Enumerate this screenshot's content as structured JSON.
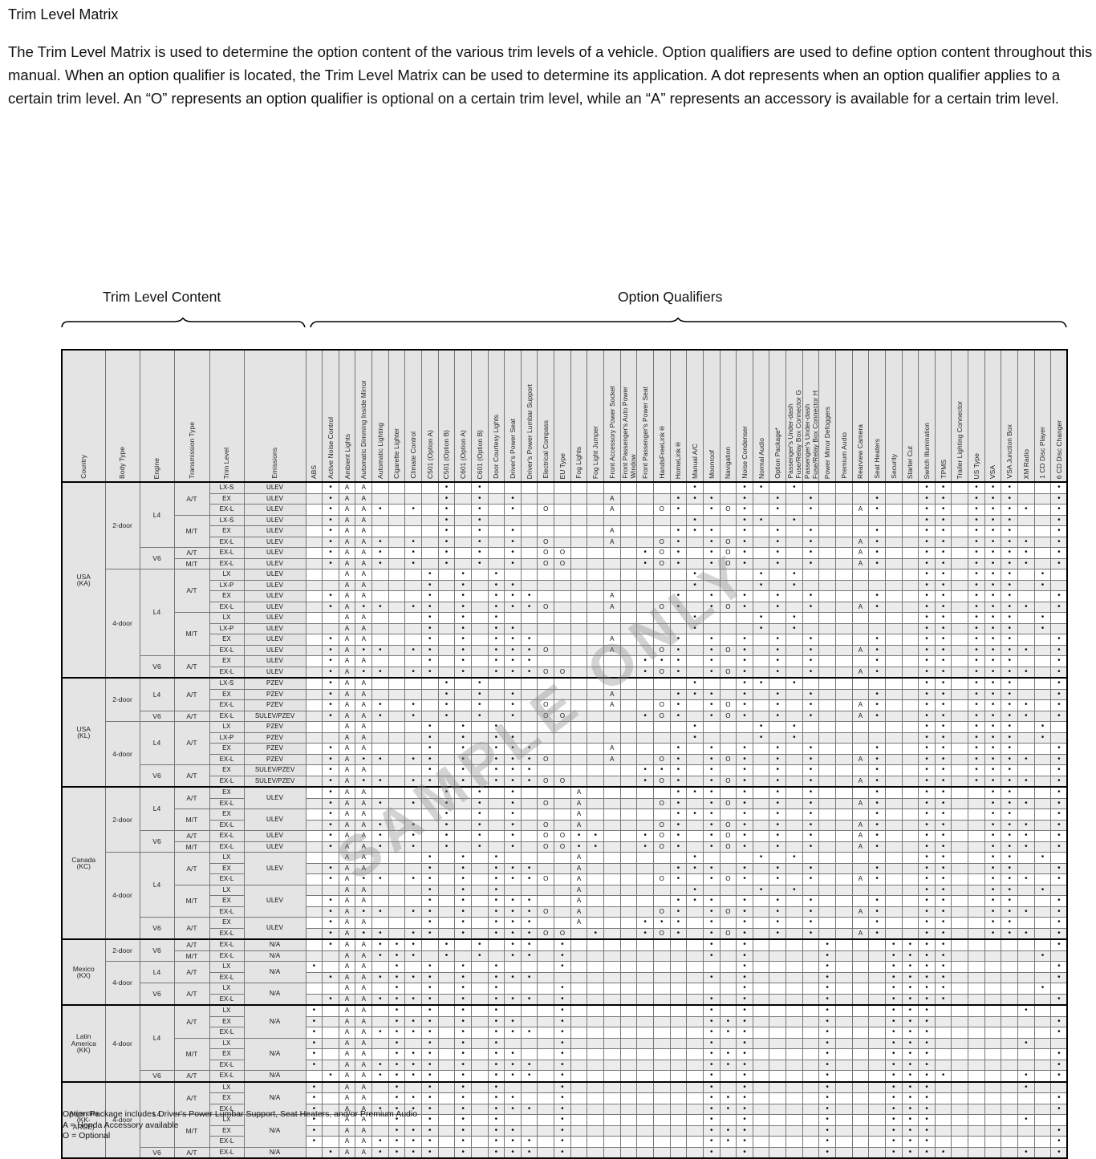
{
  "page": {
    "title": "Trim Level Matrix",
    "intro": "The Trim Level Matrix is used to determine the option content of the various trim levels of a vehicle.  Option qualifiers are used to define option content throughout this manual.  When an option qualifier is located, the Trim Level Matrix can be used to determine its application.  A dot represents when an option qualifier applies to a certain trim level.  An “O” represents an option qualifier is optional on a certain trim level, while an “A” represents an accessory is available for a certain trim level.",
    "watermark": "SAMPLE ONLY"
  },
  "brackets": {
    "left_label": "Trim Level Content",
    "right_label": "Option Qualifiers"
  },
  "legend_symbols": {
    "applies": "•",
    "accessory": "A",
    "optional": "O"
  },
  "table": {
    "id_headers": [
      "Country",
      "Body Type",
      "Engine",
      "Transmission Type",
      "Trim Level",
      "Emissions"
    ],
    "option_headers": [
      "ABS",
      "Active Noise Control",
      "Ambient Lights",
      "Automatic Dimming Inside Mirror",
      "Automatic Lighting",
      "Cigarette Lighter",
      "Climate Control",
      "C501 (Option A)",
      "C501 (Option B)",
      "C601 (Option A)",
      "C601 (Option B)",
      "Door Courtesy Lights",
      "Driver's Power Seat",
      "Driver's Power Lumbar Support",
      "Electrical Compass",
      "EU Type",
      "Fog Lights",
      "Fog Light Jumper",
      "Front Accessory Power Socket",
      "Front Passenger's Auto Power\nWindow",
      "Front Passenger's Power Seat",
      "HandsFreeLink®",
      "HomeLink®",
      "Manual A/C",
      "Moonroof",
      "Navigation",
      "Noise Condenser",
      "Normal Audio",
      "Option Package*",
      "Passenger's Under-dash\nFuse/Relay Box Connector G",
      "Passenger's Under-dash\nFuse/Relay Box Connector H",
      "Power Mirror Defoggers",
      "Premium Audio",
      "Rearview Camera",
      "Seat Heaters",
      "Security",
      "Starter Cut",
      "Switch Illumination",
      "TPMS",
      "Trailer Lighting Connector",
      "US Type",
      "VSA",
      "VSA Junction Box",
      "XM Radio",
      "1 CD Disc Player",
      "6 CD Disc Changer"
    ]
  },
  "sections": [
    {
      "country": "USA\n(KA)",
      "rows": [
        {
          "b": "2-door",
          "bs": 8,
          "e": "L4",
          "es": 6,
          "t": "A/T",
          "ts": 3,
          "trim": "LX-S",
          "m": "ULEV",
          "ms": 1,
          "c": "2:.,3:A,4:A,9:.,11:.,24:.,27:.,28:.,30:.,38:.,39:.,41:.,42:.,43:.,46:."
        },
        {
          "trim": "EX",
          "m": "ULEV",
          "ms": 1,
          "c": "2:.,3:A,4:A,9:.,11:.,13:.,19:A,23:.,24:.,25:.,27:.,29:.,31:.,35:.,38:.,39:.,41:.,42:.,43:.,46:."
        },
        {
          "trim": "EX-L",
          "m": "ULEV",
          "ms": 1,
          "c": "2:.,3:A,4:A,5:.,7:.,9:.,11:.,13:.,15:O,19:A,22:O,23:.,25:.,26:O,27:.,29:.,31:.,34:A,35:.,38:.,39:.,41:.,42:.,43:.,44:.,46:."
        },
        {
          "t": "M/T",
          "ts": 3,
          "trim": "LX-S",
          "m": "ULEV",
          "ms": 1,
          "c": "2:.,3:A,4:A,9:.,11:.,24:.,27:.,28:.,30:.,38:.,39:.,41:.,42:.,43:.,46:."
        },
        {
          "trim": "EX",
          "m": "ULEV",
          "ms": 1,
          "c": "2:.,3:A,4:A,9:.,11:.,13:.,19:A,23:.,24:.,25:.,27:.,29:.,31:.,35:.,38:.,39:.,41:.,42:.,43:.,46:."
        },
        {
          "trim": "EX-L",
          "m": "ULEV",
          "ms": 1,
          "c": "2:.,3:A,4:A,5:.,7:.,9:.,11:.,13:.,15:O,19:A,22:O,23:.,25:.,26:O,27:.,29:.,31:.,34:A,35:.,38:.,39:.,41:.,42:.,43:.,44:.,46:."
        },
        {
          "e": "V6",
          "es": 2,
          "t": "A/T",
          "ts": 1,
          "trim": "EX-L",
          "m": "ULEV",
          "ms": 1,
          "c": "2:.,3:A,4:A,5:.,7:.,9:.,11:.,13:.,15:O,16:O,21:.,22:O,23:.,25:.,26:O,27:.,29:.,31:.,34:A,35:.,38:.,39:.,41:.,42:.,43:.,44:.,46:."
        },
        {
          "t": "M/T",
          "ts": 1,
          "trim": "EX-L",
          "m": "ULEV",
          "ms": 1,
          "c": "2:.,3:A,4:A,5:.,7:.,9:.,11:.,13:.,15:O,16:O,21:.,22:O,23:.,25:.,26:O,27:.,29:.,31:.,34:A,35:.,38:.,39:.,41:.,42:.,43:.,44:.,46:."
        },
        {
          "b": "4-door",
          "bs": 10,
          "e": "L4",
          "es": 8,
          "t": "A/T",
          "ts": 4,
          "trim": "LX",
          "m": "ULEV",
          "ms": 1,
          "c": "3:A,4:A,8:.,10:.,12:.,24:.,28:.,30:.,38:.,39:.,41:.,42:.,43:.,45:."
        },
        {
          "trim": "LX-P",
          "m": "ULEV",
          "ms": 1,
          "c": "3:A,4:A,8:.,10:.,12:.,13:.,24:.,28:.,30:.,38:.,39:.,41:.,42:.,43:.,45:."
        },
        {
          "trim": "EX",
          "m": "ULEV",
          "ms": 1,
          "c": "2:.,3:A,4:A,8:.,10:.,12:.,13:.,14:.,19:A,23:.,25:.,27:.,29:.,31:.,35:.,38:.,39:.,41:.,42:.,43:.,46:."
        },
        {
          "trim": "EX-L",
          "m": "ULEV",
          "ms": 1,
          "c": "2:.,3:A,4:.,5:.,7:.,8:.,10:.,12:.,13:.,14:.,15:O,19:A,22:O,23:.,25:.,26:O,27:.,29:.,31:.,34:A,35:.,38:.,39:.,41:.,42:.,43:.,44:.,46:."
        },
        {
          "t": "M/T",
          "ts": 4,
          "trim": "LX",
          "m": "ULEV",
          "ms": 1,
          "c": "3:A,4:A,8:.,10:.,12:.,24:.,28:.,30:.,38:.,39:.,41:.,42:.,43:.,45:."
        },
        {
          "trim": "LX-P",
          "m": "ULEV",
          "ms": 1,
          "c": "3:A,4:A,8:.,10:.,12:.,13:.,24:.,28:.,30:.,38:.,39:.,41:.,42:.,43:.,45:."
        },
        {
          "trim": "EX",
          "m": "ULEV",
          "ms": 1,
          "c": "2:.,3:A,4:A,8:.,10:.,12:.,13:.,14:.,19:A,23:.,25:.,27:.,29:.,31:.,35:.,38:.,39:.,41:.,42:.,43:.,46:."
        },
        {
          "trim": "EX-L",
          "m": "ULEV",
          "ms": 1,
          "c": "2:.,3:A,4:.,5:.,7:.,8:.,10:.,12:.,13:.,14:.,15:O,19:A,22:O,23:.,25:.,26:O,27:.,29:.,31:.,34:A,35:.,38:.,39:.,41:.,42:.,43:.,44:.,46:."
        },
        {
          "e": "V6",
          "es": 2,
          "t": "A/T",
          "ts": 2,
          "trim": "EX",
          "m": "ULEV",
          "ms": 1,
          "c": "2:.,3:A,4:A,8:.,10:.,12:.,13:.,14:.,21:.,22:.,23:.,25:.,27:.,29:.,31:.,35:.,38:.,39:.,41:.,42:.,43:.,46:."
        },
        {
          "trim": "EX-L",
          "m": "ULEV",
          "ms": 1,
          "c": "2:.,3:A,4:.,5:.,7:.,8:.,10:.,12:.,13:.,14:.,15:O,16:O,21:.,22:O,23:.,25:.,26:O,27:.,29:.,31:.,34:A,35:.,38:.,39:.,41:.,42:.,43:.,44:.,46:."
        }
      ]
    },
    {
      "country": "USA\n(KL)",
      "rows": [
        {
          "b": "2-door",
          "bs": 4,
          "e": "L4",
          "es": 3,
          "t": "A/T",
          "ts": 3,
          "trim": "LX-S",
          "m": "PZEV",
          "ms": 1,
          "c": "2:.,3:A,4:A,9:.,11:.,24:.,27:.,28:.,30:.,38:.,39:.,41:.,42:.,43:.,46:."
        },
        {
          "trim": "EX",
          "m": "PZEV",
          "ms": 1,
          "c": "2:.,3:A,4:A,9:.,11:.,13:.,19:A,23:.,24:.,25:.,27:.,29:.,31:.,35:.,38:.,39:.,41:.,42:.,43:.,46:."
        },
        {
          "trim": "EX-L",
          "m": "PZEV",
          "ms": 1,
          "c": "2:.,3:A,4:A,5:.,7:.,9:.,11:.,13:.,15:O,19:A,22:O,23:.,25:.,26:O,27:.,29:.,31:.,34:A,35:.,38:.,39:.,41:.,42:.,43:.,44:.,46:."
        },
        {
          "e": "V6",
          "es": 1,
          "t": "A/T",
          "ts": 1,
          "trim": "EX-L",
          "m": "SULEV/PZEV",
          "ms": 1,
          "c": "2:.,3:A,4:A,5:.,7:.,9:.,11:.,13:.,15:O,16:O,21:.,22:O,23:.,25:.,26:O,27:.,29:.,31:.,34:A,35:.,38:.,39:.,41:.,42:.,43:.,44:.,46:."
        },
        {
          "b": "4-door",
          "bs": 6,
          "e": "L4",
          "es": 4,
          "t": "A/T",
          "ts": 4,
          "trim": "LX",
          "m": "PZEV",
          "ms": 1,
          "c": "3:A,4:A,8:.,10:.,12:.,24:.,28:.,30:.,38:.,39:.,41:.,42:.,43:.,45:."
        },
        {
          "trim": "LX-P",
          "m": "PZEV",
          "ms": 1,
          "c": "3:A,4:A,8:.,10:.,12:.,13:.,24:.,28:.,30:.,38:.,39:.,41:.,42:.,43:.,45:."
        },
        {
          "trim": "EX",
          "m": "PZEV",
          "ms": 1,
          "c": "2:.,3:A,4:A,8:.,10:.,12:.,13:.,14:.,19:A,23:.,25:.,27:.,29:.,31:.,35:.,38:.,39:.,41:.,42:.,43:.,46:."
        },
        {
          "trim": "EX-L",
          "m": "PZEV",
          "ms": 1,
          "c": "2:.,3:A,4:.,5:.,7:.,8:.,10:.,12:.,13:.,14:.,15:O,19:A,22:O,23:.,25:.,26:O,27:.,29:.,31:.,34:A,35:.,38:.,39:.,41:.,42:.,43:.,44:.,46:."
        },
        {
          "e": "V6",
          "es": 2,
          "t": "A/T",
          "ts": 2,
          "trim": "EX",
          "m": "SULEV/PZEV",
          "ms": 1,
          "c": "2:.,3:A,4:A,8:.,10:.,12:.,13:.,14:.,21:.,22:.,23:.,25:.,27:.,29:.,31:.,35:.,38:.,39:.,41:.,42:.,43:.,46:."
        },
        {
          "trim": "EX-L",
          "m": "SULEV/PZEV",
          "ms": 1,
          "c": "2:.,3:A,4:.,5:.,7:.,8:.,10:.,12:.,13:.,14:.,15:O,16:O,21:.,22:O,23:.,25:.,26:O,27:.,29:.,31:.,34:A,35:.,38:.,39:.,41:.,42:.,43:.,44:.,46:."
        }
      ]
    },
    {
      "country": "Canada\n(KC)",
      "rows": [
        {
          "b": "2-door",
          "bs": 6,
          "e": "L4",
          "es": 4,
          "t": "A/T",
          "ts": 2,
          "trim": "EX",
          "m": "ULEV",
          "ms": 2,
          "c": "2:.,3:A,4:A,9:.,11:.,13:.,17:A,23:.,24:.,25:.,27:.,29:.,31:.,35:.,38:.,39:.,42:.,43:.,46:."
        },
        {
          "trim": "EX-L",
          "c": "2:.,3:A,4:A,5:.,7:.,9:.,11:.,13:.,15:O,17:A,22:O,23:.,25:.,26:O,27:.,29:.,31:.,34:A,35:.,38:.,39:.,42:.,43:.,44:.,46:."
        },
        {
          "t": "M/T",
          "ts": 2,
          "trim": "EX",
          "m": "ULEV",
          "ms": 2,
          "c": "2:.,3:A,4:A,9:.,11:.,13:.,17:A,23:.,24:.,25:.,27:.,29:.,31:.,35:.,38:.,39:.,42:.,43:.,46:."
        },
        {
          "trim": "EX-L",
          "c": "2:.,3:A,4:A,5:.,7:.,9:.,11:.,13:.,15:O,17:A,22:O,23:.,25:.,26:O,27:.,29:.,31:.,34:A,35:.,38:.,39:.,42:.,43:.,44:.,46:."
        },
        {
          "e": "V6",
          "es": 2,
          "t": "A/T",
          "ts": 1,
          "trim": "EX-L",
          "m": "ULEV",
          "ms": 1,
          "c": "2:.,3:A,4:A,5:.,7:.,9:.,11:.,13:.,15:O,16:O,17:.,18:.,21:.,22:O,23:.,25:.,26:O,27:.,29:.,31:.,34:A,35:.,38:.,39:.,42:.,43:.,44:.,46:."
        },
        {
          "t": "M/T",
          "ts": 1,
          "trim": "EX-L",
          "m": "ULEV",
          "ms": 1,
          "c": "2:.,3:A,4:A,5:.,7:.,9:.,11:.,13:.,15:O,16:O,17:.,18:.,21:.,22:O,23:.,25:.,26:O,27:.,29:.,31:.,34:A,35:.,38:.,39:.,42:.,43:.,44:.,46:."
        },
        {
          "b": "4-door",
          "bs": 8,
          "e": "L4",
          "es": 6,
          "t": "A/T",
          "ts": 3,
          "trim": "LX",
          "m": "ULEV",
          "ms": 3,
          "c": "3:A,4:A,8:.,10:.,12:.,17:A,24:.,28:.,30:.,38:.,39:.,42:.,43:.,45:."
        },
        {
          "trim": "EX",
          "c": "2:.,3:A,4:A,8:.,10:.,12:.,13:.,14:.,17:A,23:.,24:.,25:.,27:.,29:.,31:.,35:.,38:.,39:.,42:.,43:.,46:."
        },
        {
          "trim": "EX-L",
          "c": "2:.,3:A,4:.,5:.,7:.,8:.,10:.,12:.,13:.,14:.,15:O,17:A,22:O,23:.,25:.,26:O,27:.,29:.,31:.,34:A,35:.,38:.,39:.,42:.,43:.,44:.,46:."
        },
        {
          "t": "M/T",
          "ts": 3,
          "trim": "LX",
          "m": "ULEV",
          "ms": 3,
          "c": "3:A,4:A,8:.,10:.,12:.,17:A,24:.,28:.,30:.,38:.,39:.,42:.,43:.,45:."
        },
        {
          "trim": "EX",
          "c": "2:.,3:A,4:A,8:.,10:.,12:.,13:.,14:.,17:A,23:.,24:.,25:.,27:.,29:.,31:.,35:.,38:.,39:.,42:.,43:.,46:."
        },
        {
          "trim": "EX-L",
          "c": "2:.,3:A,4:.,5:.,7:.,8:.,10:.,12:.,13:.,14:.,15:O,17:A,22:O,23:.,25:.,26:O,27:.,29:.,31:.,34:A,35:.,38:.,39:.,42:.,43:.,44:.,46:."
        },
        {
          "e": "V6",
          "es": 2,
          "t": "A/T",
          "ts": 2,
          "trim": "EX",
          "m": "ULEV",
          "ms": 2,
          "c": "2:.,3:A,4:A,8:.,10:.,12:.,13:.,14:.,17:A,21:.,22:.,23:.,25:.,27:.,29:.,31:.,35:.,38:.,39:.,42:.,43:.,46:."
        },
        {
          "trim": "EX-L",
          "c": "2:.,3:A,4:.,5:.,7:.,8:.,10:.,12:.,13:.,14:.,15:O,16:O,18:.,21:.,22:O,23:.,25:.,26:O,27:.,29:.,31:.,34:A,35:.,38:.,39:.,42:.,43:.,44:.,46:."
        }
      ]
    },
    {
      "country": "Mexico\n(KX)",
      "rows": [
        {
          "b": "2-door",
          "bs": 2,
          "e": "V6",
          "es": 2,
          "t": "A/T",
          "ts": 1,
          "trim": "EX-L",
          "m": "N/A",
          "ms": 1,
          "c": "2:.,3:A,4:A,5:.,6:.,7:.,9:.,11:.,13:.,14:.,16:.,25:.,27:.,32:.,36:.,37:.,38:.,39:.,46:."
        },
        {
          "t": "M/T",
          "ts": 1,
          "trim": "EX-L",
          "m": "N/A",
          "ms": 1,
          "c": "3:A,4:A,5:.,6:.,7:.,9:.,11:.,13:.,14:.,16:.,25:.,27:.,32:.,36:.,37:.,38:.,39:.,45:."
        },
        {
          "b": "4-door",
          "bs": 4,
          "e": "L4",
          "es": 2,
          "t": "A/T",
          "ts": 2,
          "trim": "LX",
          "m": "N/A",
          "ms": 2,
          "c": "1:.,3:A,4:A,6:.,8:.,10:.,12:.,16:.,27:.,32:.,36:.,37:.,38:.,39:.,46:."
        },
        {
          "trim": "EX-L",
          "c": "2:.,3:A,4:A,5:.,6:.,7:.,8:.,10:.,12:.,13:.,14:.,25:.,27:.,32:.,36:.,37:.,38:.,39:.,46:."
        },
        {
          "e": "V6",
          "es": 2,
          "t": "A/T",
          "ts": 2,
          "trim": "LX",
          "m": "N/A",
          "ms": 2,
          "c": "3:A,4:A,6:.,8:.,10:.,12:.,16:.,27:.,32:.,36:.,37:.,38:.,39:.,45:."
        },
        {
          "trim": "EX-L",
          "c": "2:.,3:A,4:A,5:.,6:.,7:.,8:.,10:.,12:.,13:.,14:.,16:.,25:.,27:.,32:.,36:.,37:.,38:.,39:.,46:."
        }
      ]
    },
    {
      "country": "Latin\nAmerica\n(KK)",
      "rows": [
        {
          "b": "4-door",
          "bs": 7,
          "e": "L4",
          "es": 6,
          "t": "A/T",
          "ts": 3,
          "trim": "LX",
          "m": "N/A",
          "ms": 3,
          "c": "1:.,3:A,4:A,6:.,8:.,10:.,12:.,16:.,25:.,27:.,32:.,36:.,37:.,38:.,44:."
        },
        {
          "trim": "EX",
          "c": "1:.,3:A,4:A,6:.,7:.,8:.,10:.,12:.,13:.,16:.,25:.,26:.,27:.,32:.,36:.,37:.,38:.,46:."
        },
        {
          "trim": "EX-L",
          "c": "1:.,3:A,4:A,5:.,6:.,7:.,8:.,10:.,12:.,13:.,14:.,16:.,25:.,26:.,27:.,32:.,36:.,37:.,38:.,46:."
        },
        {
          "t": "M/T",
          "ts": 3,
          "trim": "LX",
          "m": "N/A",
          "ms": 3,
          "c": "1:.,3:A,4:A,6:.,8:.,10:.,12:.,16:.,25:.,27:.,32:.,36:.,37:.,38:.,44:."
        },
        {
          "trim": "EX",
          "c": "1:.,3:A,4:A,6:.,7:.,8:.,10:.,12:.,13:.,16:.,25:.,26:.,27:.,32:.,36:.,37:.,38:.,46:."
        },
        {
          "trim": "EX-L",
          "c": "1:.,3:A,4:A,5:.,6:.,7:.,8:.,10:.,12:.,13:.,14:.,16:.,25:.,26:.,27:.,32:.,36:.,37:.,38:.,46:."
        },
        {
          "e": "V6",
          "es": 1,
          "t": "A/T",
          "ts": 1,
          "trim": "EX-L",
          "m": "N/A",
          "ms": 1,
          "c": "2:.,3:A,4:A,5:.,6:.,7:.,8:.,10:.,12:.,13:.,14:.,16:.,25:.,27:.,32:.,36:.,37:.,38:.,39:.,44:.,46:."
        }
      ]
    },
    {
      "country": "Argentina\n(KK-\nARGE)",
      "rows": [
        {
          "b": "4-door",
          "bs": 7,
          "e": "L4",
          "es": 6,
          "t": "A/T",
          "ts": 3,
          "trim": "LX",
          "m": "N/A",
          "ms": 3,
          "c": "1:.,3:A,4:A,6:.,8:.,10:.,12:.,16:.,25:.,27:.,32:.,36:.,37:.,38:.,44:."
        },
        {
          "trim": "EX",
          "c": "1:.,3:A,4:A,6:.,7:.,8:.,10:.,12:.,13:.,16:.,25:.,26:.,27:.,32:.,36:.,37:.,38:.,46:."
        },
        {
          "trim": "EX-L",
          "c": "1:.,3:A,4:A,5:.,6:.,7:.,8:.,10:.,12:.,13:.,14:.,16:.,25:.,26:.,27:.,32:.,36:.,37:.,38:.,46:."
        },
        {
          "t": "M/T",
          "ts": 3,
          "trim": "LX",
          "m": "N/A",
          "ms": 3,
          "c": "1:.,3:A,4:A,6:.,8:.,10:.,12:.,16:.,25:.,27:.,32:.,36:.,37:.,38:.,44:."
        },
        {
          "trim": "EX",
          "c": "1:.,3:A,4:A,6:.,7:.,8:.,10:.,12:.,13:.,16:.,25:.,26:.,27:.,32:.,36:.,37:.,38:.,46:."
        },
        {
          "trim": "EX-L",
          "c": "1:.,3:A,4:A,5:.,6:.,7:.,8:.,10:.,12:.,13:.,14:.,16:.,25:.,26:.,27:.,32:.,36:.,37:.,38:.,46:."
        },
        {
          "e": "V6",
          "es": 1,
          "t": "A/T",
          "ts": 1,
          "trim": "EX-L",
          "m": "N/A",
          "ms": 1,
          "c": "2:.,3:A,4:A,5:.,6:.,7:.,8:.,10:.,12:.,13:.,14:.,16:.,25:.,27:.,32:.,36:.,37:.,38:.,39:.,44:.,46:."
        }
      ]
    }
  ],
  "footnotes": [
    "Option Package includes Driver's Power Lumbar Support, Seat Heaters, and/or Premium Audio",
    "A = Honda Accessory available",
    "O = Optional"
  ]
}
